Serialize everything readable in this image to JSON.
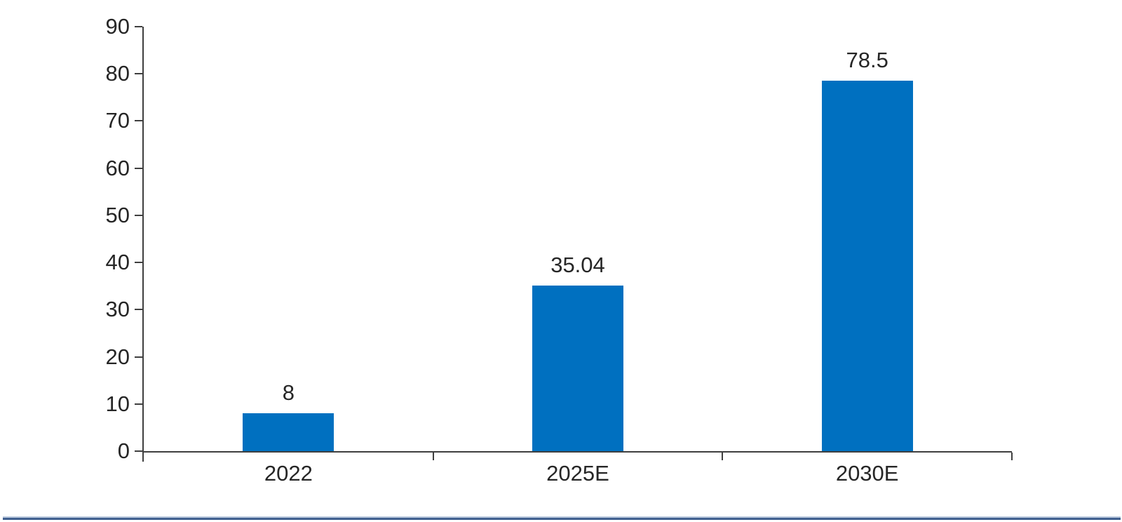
{
  "chart_data": {
    "type": "bar",
    "title": "",
    "xlabel": "",
    "ylabel": "",
    "categories": [
      "2022",
      "2025E",
      "2030E"
    ],
    "values": [
      8,
      35.04,
      78.5
    ],
    "data_labels": [
      "8",
      "35.04",
      "78.5"
    ],
    "ylim": [
      0,
      90
    ],
    "ytick_step": 10,
    "ytick_labels": [
      "0",
      "10",
      "20",
      "30",
      "40",
      "50",
      "60",
      "70",
      "80",
      "90"
    ],
    "grid": false,
    "legend": "none",
    "colors": {
      "bar": "#0070C0",
      "axis": "#3F3F3F",
      "text": "#262626"
    }
  },
  "footer_rule": {
    "light_color": "#B7C6DC",
    "dark_color": "#3F5F8F"
  }
}
